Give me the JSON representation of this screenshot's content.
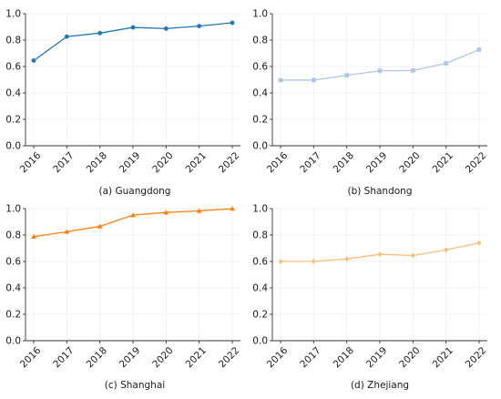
{
  "chart_data": [
    {
      "type": "line",
      "caption": "(a) Guangdong",
      "x": [
        "2016",
        "2017",
        "2018",
        "2019",
        "2020",
        "2021",
        "2022"
      ],
      "y_ticks": [
        "0.0",
        "0.2",
        "0.4",
        "0.6",
        "0.8",
        "1.0"
      ],
      "ylim": [
        0,
        1
      ],
      "grid": true,
      "color": "#1f77b4",
      "marker": "circle",
      "values": [
        0.645,
        0.826,
        0.853,
        0.896,
        0.887,
        0.906,
        0.931
      ]
    },
    {
      "type": "line",
      "caption": "(b) Shandong",
      "x": [
        "2016",
        "2017",
        "2018",
        "2019",
        "2020",
        "2021",
        "2022"
      ],
      "y_ticks": [
        "0.0",
        "0.2",
        "0.4",
        "0.6",
        "0.8",
        "1.0"
      ],
      "ylim": [
        0,
        1
      ],
      "grid": true,
      "color": "#aec7e8",
      "marker": "square",
      "values": [
        0.497,
        0.497,
        0.533,
        0.567,
        0.57,
        0.624,
        0.728
      ]
    },
    {
      "type": "line",
      "caption": "(c) Shanghai",
      "x": [
        "2016",
        "2017",
        "2018",
        "2019",
        "2020",
        "2021",
        "2022"
      ],
      "y_ticks": [
        "0.0",
        "0.2",
        "0.4",
        "0.6",
        "0.8",
        "1.0"
      ],
      "ylim": [
        0,
        1
      ],
      "grid": true,
      "color": "#ff7f0e",
      "marker": "triangle",
      "values": [
        0.788,
        0.825,
        0.866,
        0.951,
        0.971,
        0.983,
        1.0
      ]
    },
    {
      "type": "line",
      "caption": "(d) Zhejiang",
      "x": [
        "2016",
        "2017",
        "2018",
        "2019",
        "2020",
        "2021",
        "2022"
      ],
      "y_ticks": [
        "0.0",
        "0.2",
        "0.4",
        "0.6",
        "0.8",
        "1.0"
      ],
      "ylim": [
        0,
        1
      ],
      "grid": true,
      "color": "#ffbb78",
      "marker": "diamond",
      "values": [
        0.6,
        0.601,
        0.619,
        0.654,
        0.645,
        0.688,
        0.74
      ]
    }
  ]
}
